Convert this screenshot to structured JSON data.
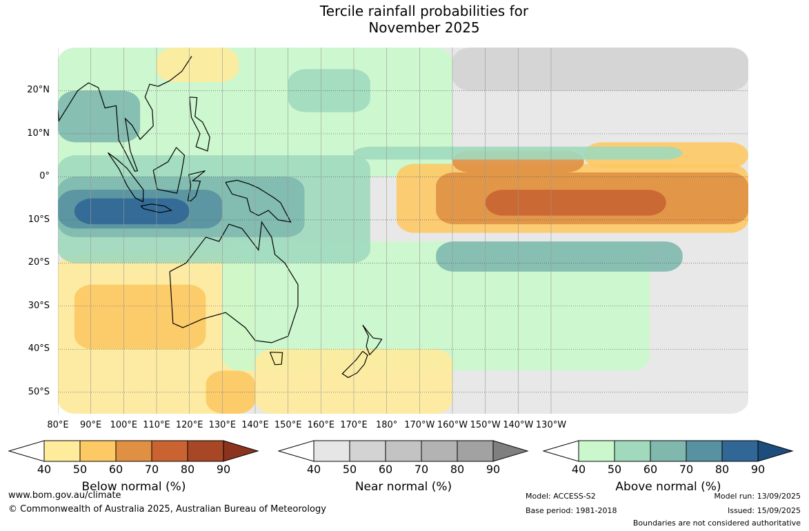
{
  "title": {
    "line1": "Tercile rainfall probabilities for",
    "line2": "November 2025"
  },
  "map": {
    "lat_labels": [
      "20°N",
      "10°N",
      "0°",
      "10°S",
      "20°S",
      "30°S",
      "40°S",
      "50°S"
    ],
    "lon_labels": [
      "80°E",
      "90°E",
      "100°E",
      "110°E",
      "120°E",
      "130°E",
      "140°E",
      "150°E",
      "160°E",
      "170°E",
      "180°",
      "170°W",
      "160°W",
      "150°W",
      "140°W",
      "130°W"
    ],
    "palettes": {
      "below": [
        "#ffffff",
        "#ffeb9c",
        "#fdc964",
        "#df9043",
        "#c96432",
        "#a74725",
        "#8c331d"
      ],
      "near": [
        "#ffffff",
        "#e6e6e6",
        "#d3d3d3",
        "#c3c3c3",
        "#b3b3b3",
        "#a2a2a2",
        "#7f7f7f"
      ],
      "above": [
        "#ffffff",
        "#caf8cc",
        "#a0d9bc",
        "#80b8ae",
        "#5891a1",
        "#316796",
        "#1d4d7c"
      ]
    }
  },
  "colorbars": [
    {
      "key": "below",
      "label": "Below normal (%)",
      "ticks": [
        "40",
        "50",
        "60",
        "70",
        "80",
        "90"
      ]
    },
    {
      "key": "near",
      "label": "Near normal (%)",
      "ticks": [
        "40",
        "50",
        "60",
        "70",
        "80",
        "90"
      ]
    },
    {
      "key": "above",
      "label": "Above normal (%)",
      "ticks": [
        "40",
        "50",
        "60",
        "70",
        "80",
        "90"
      ]
    }
  ],
  "footer": {
    "website": "www.bom.gov.au/climate",
    "copyright": "© Commonwealth of Australia 2025, Australian Bureau of Meteorology",
    "model": "Model: ACCESS-S2",
    "base_period": "Base period: 1981-2018",
    "model_run": "Model run: 13/09/2025",
    "issued": "Issued: 15/09/2025",
    "boundaries": "Boundaries are not considered authoritative"
  }
}
